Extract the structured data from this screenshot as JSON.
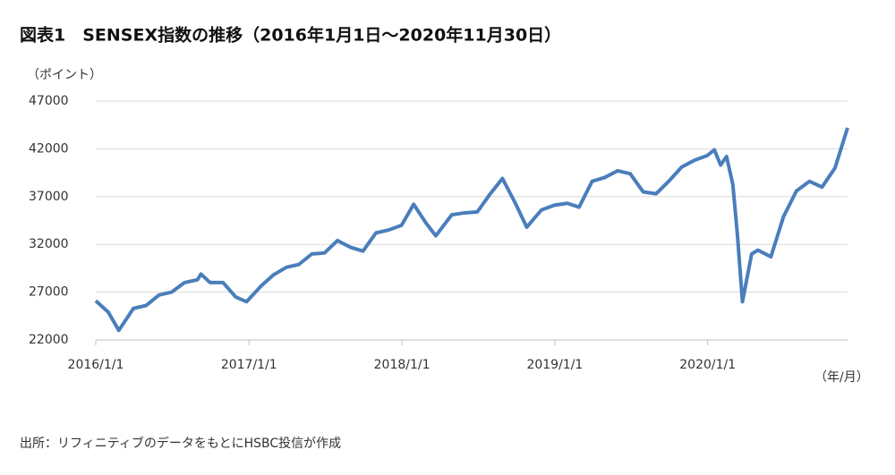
{
  "chart_data": {
    "type": "line",
    "title": "図表1　SENSEX指数の推移（2016年1月1日～2020年11月30日）",
    "y_unit": "（ポイント）",
    "x_unit": "（年/月）",
    "source": "出所：リフィニティブのデータをもとにHSBC投信が作成",
    "grid": true,
    "xlim": [
      "2016-01-01",
      "2020-11-30"
    ],
    "ylim": [
      22000,
      47000
    ],
    "yticks": [
      22000,
      27000,
      32000,
      37000,
      42000,
      47000
    ],
    "xticks": [
      {
        "value": "2016-01-01",
        "label": "2016/1/1"
      },
      {
        "value": "2017-01-01",
        "label": "2017/1/1"
      },
      {
        "value": "2018-01-01",
        "label": "2018/1/1"
      },
      {
        "value": "2019-01-01",
        "label": "2019/1/1"
      },
      {
        "value": "2020-01-01",
        "label": "2020/1/1"
      }
    ],
    "x": [
      "2016-01-01",
      "2016-01-31",
      "2016-02-25",
      "2016-03-31",
      "2016-04-30",
      "2016-05-31",
      "2016-06-30",
      "2016-07-31",
      "2016-08-31",
      "2016-09-08",
      "2016-09-30",
      "2016-10-31",
      "2016-11-30",
      "2016-12-26",
      "2017-01-31",
      "2017-02-28",
      "2017-03-31",
      "2017-04-30",
      "2017-05-31",
      "2017-06-30",
      "2017-07-31",
      "2017-08-31",
      "2017-09-30",
      "2017-10-31",
      "2017-11-30",
      "2017-12-31",
      "2018-01-29",
      "2018-02-28",
      "2018-03-23",
      "2018-04-30",
      "2018-05-31",
      "2018-06-30",
      "2018-07-31",
      "2018-08-29",
      "2018-09-30",
      "2018-10-26",
      "2018-11-30",
      "2018-12-31",
      "2019-01-31",
      "2019-02-28",
      "2019-03-31",
      "2019-04-30",
      "2019-05-31",
      "2019-06-30",
      "2019-07-31",
      "2019-08-31",
      "2019-09-30",
      "2019-10-31",
      "2019-11-30",
      "2019-12-31",
      "2020-01-17",
      "2020-02-01",
      "2020-02-15",
      "2020-03-01",
      "2020-03-12",
      "2020-03-24",
      "2020-04-15",
      "2020-04-30",
      "2020-05-31",
      "2020-06-30",
      "2020-07-31",
      "2020-08-31",
      "2020-09-30",
      "2020-10-31",
      "2020-11-30"
    ],
    "series": [
      {
        "color": "#4a7ebb",
        "values": [
          26100,
          24900,
          23000,
          25300,
          25600,
          26700,
          27000,
          28000,
          28300,
          28900,
          28000,
          28000,
          26500,
          26000,
          27700,
          28800,
          29600,
          29900,
          31000,
          31100,
          32400,
          31700,
          31300,
          33200,
          33500,
          34000,
          36200,
          34200,
          32900,
          35100,
          35300,
          35400,
          37300,
          38900,
          36200,
          33800,
          35600,
          36100,
          36300,
          35900,
          38600,
          39000,
          39700,
          39400,
          37500,
          37300,
          38600,
          40100,
          40800,
          41300,
          41900,
          40300,
          41200,
          38300,
          33000,
          26000,
          31000,
          31400,
          30700,
          34900,
          37600,
          38600,
          38000,
          40000,
          44200
        ]
      }
    ]
  }
}
